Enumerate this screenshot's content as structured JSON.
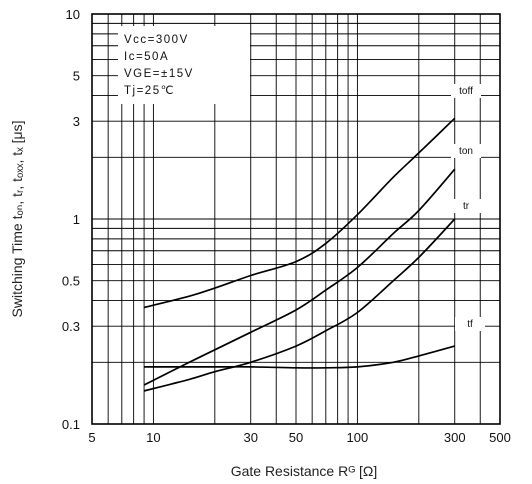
{
  "chart_data": {
    "type": "line",
    "title": "",
    "xlabel": "Gate Resistance Rᴳ [Ω]",
    "ylabel": "Switching Time tₒₙ, tᵣ, tₒₓₓ, tₓ [μs]",
    "x_scale": "log",
    "y_scale": "log",
    "xlim": [
      5,
      500
    ],
    "ylim": [
      0.1,
      10
    ],
    "x_ticks": [
      5,
      10,
      30,
      50,
      100,
      300,
      500
    ],
    "x_tick_labels": [
      "5",
      "10",
      "30",
      "50",
      "100",
      "300",
      "500"
    ],
    "y_ticks": [
      0.1,
      0.3,
      0.5,
      1,
      3,
      5,
      10
    ],
    "y_tick_labels": [
      "0.1",
      "0.3",
      "0.5",
      "1",
      "3",
      "5",
      "10"
    ],
    "grid": true,
    "conditions": [
      "Vcc=300V",
      "Ic=50A",
      "VGE=±15V",
      "Tj=25℃"
    ],
    "series": [
      {
        "name": "toff",
        "x": [
          9,
          15,
          20,
          30,
          50,
          70,
          100,
          150,
          200,
          300
        ],
        "y": [
          0.37,
          0.42,
          0.46,
          0.53,
          0.62,
          0.76,
          1.05,
          1.6,
          2.1,
          3.1
        ]
      },
      {
        "name": "ton",
        "x": [
          9,
          15,
          20,
          30,
          50,
          70,
          100,
          150,
          200,
          300
        ],
        "y": [
          0.155,
          0.2,
          0.23,
          0.28,
          0.36,
          0.45,
          0.58,
          0.85,
          1.1,
          1.75
        ]
      },
      {
        "name": "tr",
        "x": [
          9,
          15,
          20,
          30,
          50,
          70,
          100,
          150,
          200,
          300
        ],
        "y": [
          0.145,
          0.165,
          0.18,
          0.2,
          0.24,
          0.285,
          0.35,
          0.5,
          0.65,
          1.0
        ]
      },
      {
        "name": "tf",
        "x": [
          9,
          20,
          30,
          50,
          70,
          100,
          150,
          200,
          300
        ],
        "y": [
          0.19,
          0.19,
          0.19,
          0.188,
          0.188,
          0.19,
          0.2,
          0.215,
          0.24
        ]
      }
    ]
  }
}
